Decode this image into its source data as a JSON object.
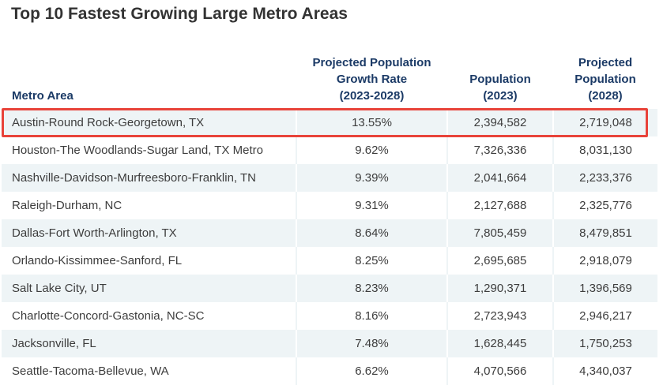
{
  "title": "Top 10 Fastest Growing Large Metro Areas",
  "header": {
    "metro_area": "Metro Area",
    "growth_rate": [
      "Projected Population",
      "Growth Rate",
      "(2023-2028)"
    ],
    "population_2023": [
      "Population",
      "(2023)"
    ],
    "population_2028": [
      "Projected",
      "Population",
      "(2028)"
    ]
  },
  "rows": [
    {
      "metro": "Austin-Round Rock-Georgetown, TX",
      "rate": "13.55%",
      "pop_2023": "2,394,582",
      "pop_2028": "2,719,048",
      "highlighted": true
    },
    {
      "metro": "Houston-The Woodlands-Sugar Land, TX Metro",
      "rate": "9.62%",
      "pop_2023": "7,326,336",
      "pop_2028": "8,031,130"
    },
    {
      "metro": "Nashville-Davidson-Murfreesboro-Franklin, TN",
      "rate": "9.39%",
      "pop_2023": "2,041,664",
      "pop_2028": "2,233,376"
    },
    {
      "metro": "Raleigh-Durham, NC",
      "rate": "9.31%",
      "pop_2023": "2,127,688",
      "pop_2028": "2,325,776"
    },
    {
      "metro": "Dallas-Fort Worth-Arlington, TX",
      "rate": "8.64%",
      "pop_2023": "7,805,459",
      "pop_2028": "8,479,851"
    },
    {
      "metro": "Orlando-Kissimmee-Sanford, FL",
      "rate": "8.25%",
      "pop_2023": "2,695,685",
      "pop_2028": "2,918,079"
    },
    {
      "metro": "Salt Lake City, UT",
      "rate": "8.23%",
      "pop_2023": "1,290,371",
      "pop_2028": "1,396,569"
    },
    {
      "metro": "Charlotte-Concord-Gastonia, NC-SC",
      "rate": "8.16%",
      "pop_2023": "2,723,943",
      "pop_2028": "2,946,217"
    },
    {
      "metro": "Jacksonville, FL",
      "rate": "7.48%",
      "pop_2023": "1,628,445",
      "pop_2028": "1,750,253"
    },
    {
      "metro": "Seattle-Tacoma-Bellevue, WA",
      "rate": "6.62%",
      "pop_2023": "4,070,566",
      "pop_2028": "4,340,037"
    }
  ],
  "colors": {
    "title": "#333333",
    "header_text": "#1b3a66",
    "row_stripe": "#eef4f6",
    "highlight_border": "#e8433a"
  }
}
